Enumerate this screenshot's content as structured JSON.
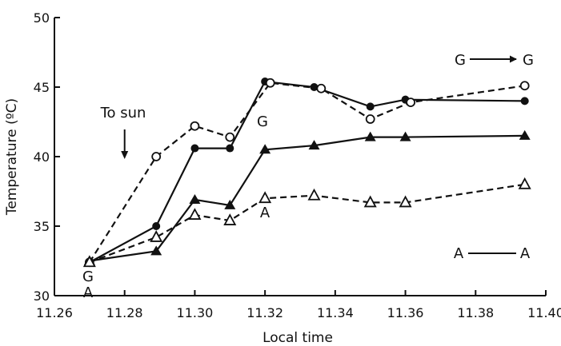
{
  "chart_data": {
    "type": "line",
    "xlabel": "Local time",
    "ylabel": "Temperature (ºC)",
    "xlim": [
      11.26,
      11.4
    ],
    "ylim": [
      30,
      50
    ],
    "xticks": [
      "11.26",
      "11.28",
      "11.30",
      "11.32",
      "11.34",
      "11.36",
      "11.38",
      "11.40"
    ],
    "yticks": [
      "30",
      "35",
      "40",
      "45",
      "50"
    ],
    "grid": false,
    "series": [
      {
        "marker": "filled-circle",
        "line": "solid",
        "x": [
          11.27,
          11.289,
          11.3,
          11.31,
          11.32,
          11.334,
          11.35,
          11.36,
          11.394
        ],
        "y": [
          32.4,
          35.0,
          40.6,
          40.6,
          45.4,
          45.0,
          43.6,
          44.1,
          44.0
        ]
      },
      {
        "marker": "open-circle",
        "line": "dashed",
        "x": [
          11.27,
          11.289,
          11.3,
          11.31,
          11.3215,
          11.336,
          11.35,
          11.3615,
          11.394
        ],
        "y": [
          32.4,
          40.0,
          42.2,
          41.4,
          45.3,
          44.9,
          42.7,
          43.9,
          45.1
        ]
      },
      {
        "marker": "filled-triangle",
        "line": "solid",
        "x": [
          11.27,
          11.289,
          11.3,
          11.31,
          11.32,
          11.334,
          11.35,
          11.36,
          11.394
        ],
        "y": [
          32.5,
          33.2,
          36.9,
          36.5,
          40.5,
          40.8,
          41.4,
          41.4,
          41.5
        ]
      },
      {
        "marker": "open-triangle",
        "line": "dashed",
        "x": [
          11.27,
          11.289,
          11.3,
          11.31,
          11.32,
          11.334,
          11.35,
          11.36,
          11.394
        ],
        "y": [
          32.4,
          34.2,
          35.8,
          35.4,
          37.0,
          37.2,
          36.7,
          36.7,
          38.0
        ]
      }
    ],
    "annotations": {
      "to_sun": "To sun",
      "to_sun_x": 11.28,
      "g_mid": "G",
      "a_mid": "A",
      "g_start": "G",
      "a_start": "A",
      "legend_g_left": "G",
      "legend_g_right": "G",
      "legend_a_left": "A",
      "legend_a_right": "A"
    }
  }
}
